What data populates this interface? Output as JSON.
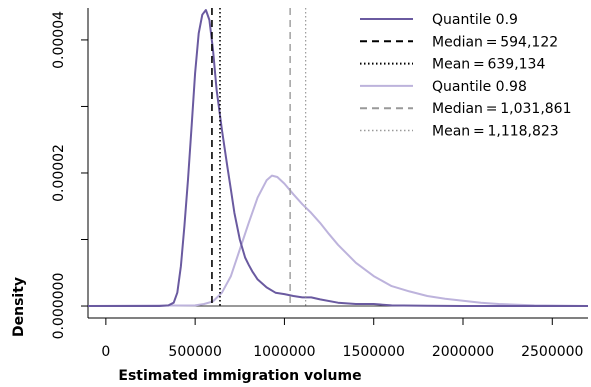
{
  "chart_data": {
    "type": "line",
    "title": "",
    "xlabel": "Estimated immigration volume",
    "ylabel": "Density",
    "xlim": [
      -100000,
      2700000
    ],
    "ylim": [
      -1.8e-06,
      4.48e-05
    ],
    "x_ticks": [
      {
        "value": 0,
        "label": "0"
      },
      {
        "value": 500000,
        "label": "500000"
      },
      {
        "value": 1000000,
        "label": "1000000"
      },
      {
        "value": 1500000,
        "label": "1500000"
      },
      {
        "value": 2000000,
        "label": "2000000"
      },
      {
        "value": 2500000,
        "label": "2500000"
      }
    ],
    "y_ticks": [
      {
        "value": 0,
        "label": "0.000000",
        "labeled": true
      },
      {
        "value": 1e-05,
        "label": "",
        "labeled": false
      },
      {
        "value": 2e-05,
        "label": "0.00002",
        "labeled": true
      },
      {
        "value": 3e-05,
        "label": "",
        "labeled": false
      },
      {
        "value": 4e-05,
        "label": "0.00004",
        "labeled": true
      }
    ],
    "zero_line": true,
    "grid": false,
    "legend_position": "top-right",
    "legend": [
      {
        "label": "Quantile 0.9",
        "color": "#6a5aa0",
        "style": "solid",
        "width": 2
      },
      {
        "label": "Median = 594,122",
        "color": "#000000",
        "style": "dashed",
        "width": 2
      },
      {
        "label": "Mean = 639,134",
        "color": "#000000",
        "style": "dotted",
        "width": 2
      },
      {
        "label": "Quantile 0.98",
        "color": "#bdb3dc",
        "style": "solid",
        "width": 2
      },
      {
        "label": "Median = 1,031,861",
        "color": "#999999",
        "style": "dashed",
        "width": 2
      },
      {
        "label": "Mean = 1,118,823",
        "color": "#999999",
        "style": "dotted",
        "width": 1.5
      }
    ],
    "series": [
      {
        "name": "Quantile 0.9",
        "color": "#6a5aa0",
        "x": [
          -100000,
          300000,
          350000,
          380000,
          400000,
          420000,
          440000,
          460000,
          480000,
          500000,
          520000,
          540000,
          560000,
          580000,
          600000,
          620000,
          650000,
          680000,
          700000,
          720000,
          750000,
          780000,
          800000,
          820000,
          850000,
          900000,
          950000,
          1000000,
          1050000,
          1100000,
          1150000,
          1200000,
          1300000,
          1400000,
          1500000,
          1600000,
          1800000,
          2000000,
          2700000
        ],
        "y": [
          0,
          0,
          1e-07,
          5e-07,
          2e-06,
          6e-06,
          1.2e-05,
          1.9e-05,
          2.7e-05,
          3.5e-05,
          4.1e-05,
          4.38e-05,
          4.45e-05,
          4.3e-05,
          3.85e-05,
          3.25e-05,
          2.65e-05,
          2.1e-05,
          1.75e-05,
          1.4e-05,
          1e-05,
          7.3e-06,
          6.2e-06,
          5.2e-06,
          4e-06,
          2.8e-06,
          2e-06,
          1.8e-06,
          1.5e-06,
          1.3e-06,
          1.3e-06,
          1e-06,
          5e-07,
          3e-07,
          3e-07,
          1e-07,
          5e-08,
          0,
          0
        ]
      },
      {
        "name": "Quantile 0.98",
        "color": "#bdb3dc",
        "x": [
          -100000,
          500000,
          550000,
          600000,
          650000,
          700000,
          750000,
          800000,
          850000,
          900000,
          930000,
          960000,
          1000000,
          1050000,
          1100000,
          1150000,
          1200000,
          1250000,
          1300000,
          1400000,
          1500000,
          1600000,
          1700000,
          1800000,
          1900000,
          2000000,
          2100000,
          2200000,
          2400000,
          2700000
        ],
        "y": [
          0,
          1e-07,
          3e-07,
          7e-07,
          2e-06,
          4.5e-06,
          8.5e-06,
          1.25e-05,
          1.63e-05,
          1.89e-05,
          1.96e-05,
          1.94e-05,
          1.84e-05,
          1.68e-05,
          1.53e-05,
          1.4e-05,
          1.25e-05,
          1.08e-05,
          9.2e-06,
          6.5e-06,
          4.5e-06,
          3e-06,
          2.2e-06,
          1.5e-06,
          1.1e-06,
          8e-07,
          5e-07,
          3e-07,
          1e-07,
          0
        ]
      }
    ],
    "vlines": [
      {
        "name": "Median 0.9",
        "x": 594122,
        "color": "#000000",
        "style": "dashed",
        "width": 1.6
      },
      {
        "name": "Mean 0.9",
        "x": 639134,
        "color": "#000000",
        "style": "dotted",
        "width": 1.6
      },
      {
        "name": "Median 0.98",
        "x": 1031861,
        "color": "#999999",
        "style": "dashed",
        "width": 1.4
      },
      {
        "name": "Mean 0.98",
        "x": 1118823,
        "color": "#999999",
        "style": "dotted",
        "width": 1.2
      }
    ]
  }
}
